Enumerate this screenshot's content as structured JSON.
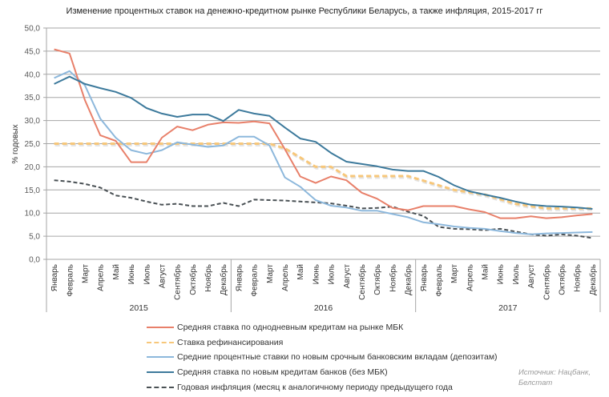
{
  "chart_data": {
    "type": "line",
    "title": "Изменение процентных ставок на денежно-кредитном рынке Республики Беларусь, а также инфляция, 2015-2017 гг",
    "ylabel": "% годовых",
    "xlabel": "",
    "ylim": [
      0,
      50
    ],
    "ytick_step": 5,
    "ytick_labels": [
      "0,0",
      "5,0",
      "10,0",
      "15,0",
      "20,0",
      "25,0",
      "30,0",
      "35,0",
      "40,0",
      "45,0",
      "50,0"
    ],
    "grid": true,
    "legend_position": "bottom",
    "months": [
      "Январь",
      "Февраль",
      "Март",
      "Апрель",
      "Май",
      "Июнь",
      "Июль",
      "Август",
      "Сентябрь",
      "Октябрь",
      "Ноябрь",
      "Декабрь"
    ],
    "years": [
      "2015",
      "2016",
      "2017"
    ],
    "series": [
      {
        "name": "Средняя ставка по однодневным кредитам на рынке МБК",
        "color": "#E8806A",
        "dashed": false,
        "values": [
          45.4,
          44.5,
          34.4,
          26.8,
          25.6,
          21.0,
          21.0,
          26.3,
          28.7,
          27.9,
          29.1,
          29.6,
          29.5,
          29.8,
          29.4,
          23.8,
          17.9,
          16.5,
          17.9,
          17.1,
          14.4,
          13.1,
          11.1,
          10.6,
          11.5,
          11.5,
          11.5,
          10.8,
          10.2,
          8.9,
          8.9,
          9.3,
          8.9,
          9.1,
          9.5,
          9.8
        ]
      },
      {
        "name": "Ставка рефинансирования",
        "color": "#F7C77A",
        "dashed": true,
        "values": [
          25,
          25,
          25,
          25,
          25,
          25,
          25,
          25,
          25,
          25,
          25,
          25,
          25,
          25,
          25,
          24,
          22,
          20,
          20,
          18,
          18,
          18,
          18,
          18,
          17,
          16,
          15,
          14.5,
          14,
          13,
          12,
          11.5,
          11,
          11,
          11,
          11
        ]
      },
      {
        "name": "Средние процентные ставки по новым срочным банковским вкладам (депозитам)",
        "color": "#8DB8DC",
        "dashed": false,
        "values": [
          39.2,
          40.7,
          37.6,
          30.4,
          26.3,
          23.6,
          22.8,
          23.6,
          25.3,
          24.8,
          24.3,
          24.6,
          26.5,
          26.5,
          24.6,
          17.7,
          15.7,
          12.8,
          11.6,
          11.2,
          10.5,
          10.5,
          9.8,
          9.1,
          8.0,
          7.6,
          7.1,
          6.8,
          6.6,
          6.1,
          5.7,
          5.4,
          5.6,
          5.7,
          5.8,
          5.9
        ]
      },
      {
        "name": "Средняя ставка по новым кредитам банков (без МБК)",
        "color": "#3D7A9C",
        "dashed": false,
        "values": [
          37.9,
          39.5,
          37.9,
          37.0,
          36.2,
          34.9,
          32.7,
          31.5,
          30.8,
          31.3,
          31.3,
          29.9,
          32.3,
          31.5,
          31.0,
          28.5,
          26.1,
          25.4,
          23.0,
          21.1,
          20.6,
          20.1,
          19.4,
          19.1,
          19.1,
          17.8,
          16.0,
          14.7,
          14.0,
          13.3,
          12.5,
          11.8,
          11.5,
          11.4,
          11.2,
          10.9
        ]
      },
      {
        "name": "Годовая инфляция (месяц к аналогичному периоду предыдущего года",
        "color": "#4A5155",
        "dashed": true,
        "values": [
          17.1,
          16.8,
          16.3,
          15.5,
          13.8,
          13.3,
          12.5,
          11.8,
          12.0,
          11.5,
          11.5,
          12.2,
          11.5,
          12.9,
          12.8,
          12.7,
          12.5,
          12.3,
          12.1,
          11.6,
          11.0,
          11.1,
          11.4,
          10.3,
          9.4,
          7.0,
          6.6,
          6.5,
          6.3,
          6.6,
          6.0,
          5.4,
          5.1,
          5.4,
          5.1,
          4.6
        ]
      }
    ]
  },
  "source_note": [
    "Источник: Нацбанк,",
    "Белстат"
  ]
}
